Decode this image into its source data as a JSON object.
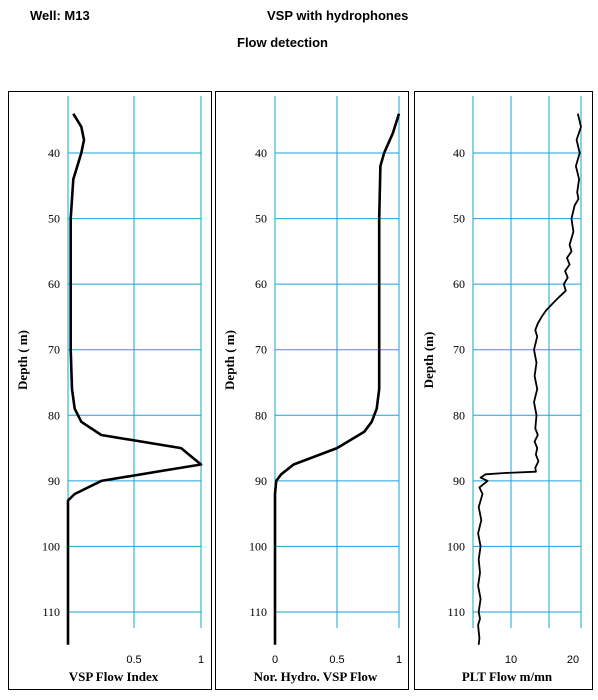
{
  "header": {
    "well": "Well: M13",
    "title": "VSP with hydrophones",
    "subtitle": "Flow detection"
  },
  "chart_data": [
    {
      "type": "line",
      "xlabel": "VSP Flow Index",
      "ylabel": "Depth ( m)",
      "x_ticks": [
        "0.5",
        "1"
      ],
      "y_ticks": [
        "40",
        "50",
        "60",
        "70",
        "80",
        "90",
        "100",
        "110"
      ],
      "xlim": [
        0,
        1
      ],
      "ylim": [
        33,
        116
      ],
      "y_inverted": true,
      "grid": true,
      "series": [
        {
          "x": [
            0.04,
            0.1,
            0.12,
            0.1,
            0.04,
            0.02,
            0.02,
            0.02,
            0.03,
            0.05,
            0.1,
            0.25,
            0.85,
            1.0,
            0.7,
            0.25,
            0.05,
            0.0,
            0.0,
            0.0,
            0.0
          ],
          "y": [
            34,
            36,
            38,
            40,
            44,
            50,
            60,
            70,
            76,
            79,
            81,
            83,
            85,
            87.5,
            88.5,
            90,
            92,
            93,
            100,
            110,
            115
          ]
        }
      ]
    },
    {
      "type": "line",
      "xlabel": "Nor. Hydro. VSP Flow",
      "ylabel": "Depth ( m)",
      "x_ticks": [
        "0",
        "0.5",
        "1"
      ],
      "y_ticks": [
        "40",
        "50",
        "60",
        "70",
        "80",
        "90",
        "100",
        "110"
      ],
      "xlim": [
        0,
        1
      ],
      "ylim": [
        33,
        116
      ],
      "y_inverted": true,
      "grid": true,
      "series": [
        {
          "x": [
            1.0,
            0.95,
            0.88,
            0.85,
            0.84,
            0.84,
            0.84,
            0.84,
            0.82,
            0.78,
            0.72,
            0.5,
            0.15,
            0.05,
            0.01,
            0.0,
            0.0,
            0.0
          ],
          "y": [
            34,
            37,
            40,
            42,
            50,
            60,
            70,
            76,
            79,
            81,
            82.5,
            85,
            87.5,
            89,
            90,
            92,
            100,
            115
          ]
        }
      ]
    },
    {
      "type": "line",
      "xlabel": "PLT Flow  m/mn",
      "ylabel": "Depth (m)",
      "x_ticks": [
        "10",
        "20"
      ],
      "y_ticks": [
        "40",
        "50",
        "60",
        "70",
        "80",
        "90",
        "100",
        "110"
      ],
      "xlim": [
        4,
        21
      ],
      "ylim": [
        33,
        116
      ],
      "y_inverted": true,
      "grid": true,
      "series": [
        {
          "x": [
            20.5,
            21,
            20.3,
            20.8,
            20.2,
            20.7,
            20.4,
            20.6,
            20,
            19.5,
            19.8,
            19.2,
            19.5,
            18.8,
            19.2,
            18.5,
            18.9,
            18.3,
            18.6,
            17.5,
            16.5,
            15.5,
            14.8,
            14.2,
            13.8,
            14.1,
            13.6,
            14.0,
            13.7,
            14.1,
            13.6,
            14.0,
            13.8,
            14.2,
            13.7,
            14.1,
            13.9,
            14.3,
            13.8,
            13.9,
            9,
            6,
            5.2,
            6.3,
            5.0,
            5.5,
            4.9,
            5.3,
            4.8,
            5.2,
            4.9,
            5.1,
            4.8,
            5.2,
            4.9,
            5.1,
            4.8,
            5.0,
            4.9
          ],
          "y": [
            34,
            36,
            38,
            40,
            42,
            44,
            46,
            47,
            48,
            50,
            52,
            54,
            55,
            56,
            57,
            58,
            59,
            60,
            61,
            62,
            63,
            64,
            65,
            66,
            67,
            68,
            70,
            72,
            74,
            76,
            78,
            80,
            82,
            83,
            84,
            85,
            86,
            87,
            88,
            88.6,
            88.8,
            89,
            89.5,
            90,
            91,
            92,
            94,
            96,
            98,
            100,
            102,
            104,
            106,
            108,
            110,
            111,
            112,
            114,
            115
          ]
        }
      ]
    }
  ]
}
